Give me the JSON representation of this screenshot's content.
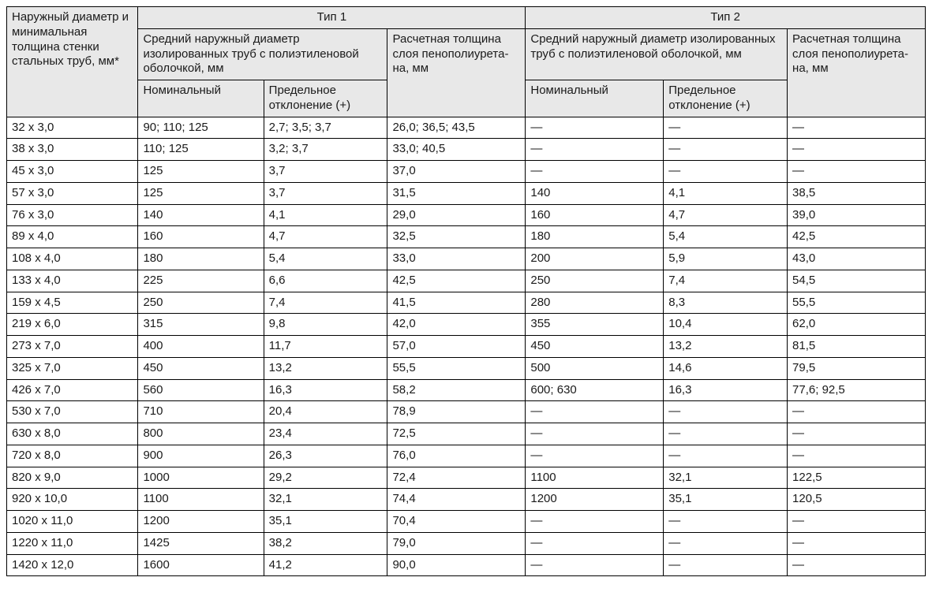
{
  "table": {
    "type": "table",
    "background_color": "#ffffff",
    "header_background": "#e8e8e8",
    "border_color": "#000000",
    "text_color": "#1a1a1a",
    "font_family": "Arial",
    "font_size_pt": 11,
    "columns_width_pct": [
      13.8,
      13.2,
      13.0,
      14.5,
      14.5,
      13.0,
      14.5
    ],
    "headers": {
      "col0": "Наружный диаметр и минимальная толщина стенки стальных труб, мм*",
      "type1": "Тип 1",
      "type2": "Тип 2",
      "avg_diam": "Средний наружный диаметр изолированных труб с полиэтиленовой оболочкой, мм",
      "thickness": "Расчетная толщина слоя пенополиурета­на, мм",
      "nominal": "Номинальный",
      "deviation": "Предельное отклонение (+)"
    },
    "rows": [
      [
        "32 x 3,0",
        "90; 110; 125",
        "2,7; 3,5; 3,7",
        "26,0; 36,5; 43,5",
        "—",
        "—",
        "—"
      ],
      [
        "38 x 3,0",
        "110; 125",
        "3,2; 3,7",
        "33,0; 40,5",
        "—",
        "—",
        "—"
      ],
      [
        "45 x 3,0",
        "125",
        "3,7",
        "37,0",
        "—",
        "—",
        "—"
      ],
      [
        "57 x 3,0",
        "125",
        "3,7",
        "31,5",
        "140",
        "4,1",
        "38,5"
      ],
      [
        "76 x 3,0",
        "140",
        "4,1",
        "29,0",
        "160",
        "4,7",
        "39,0"
      ],
      [
        "89 x 4,0",
        "160",
        "4,7",
        "32,5",
        "180",
        "5,4",
        "42,5"
      ],
      [
        "108 x 4,0",
        "180",
        "5,4",
        "33,0",
        "200",
        "5,9",
        "43,0"
      ],
      [
        "133 x 4,0",
        "225",
        "6,6",
        "42,5",
        "250",
        "7,4",
        "54,5"
      ],
      [
        "159 x 4,5",
        "250",
        "7,4",
        "41,5",
        "280",
        "8,3",
        "55,5"
      ],
      [
        "219 x 6,0",
        "315",
        "9,8",
        "42,0",
        "355",
        "10,4",
        "62,0"
      ],
      [
        "273 x 7,0",
        "400",
        "11,7",
        "57,0",
        "450",
        "13,2",
        "81,5"
      ],
      [
        "325 x 7,0",
        "450",
        "13,2",
        "55,5",
        "500",
        "14,6",
        "79,5"
      ],
      [
        "426 x 7,0",
        "560",
        "16,3",
        "58,2",
        "600; 630",
        "16,3",
        "77,6; 92,5"
      ],
      [
        "530 x 7,0",
        "710",
        "20,4",
        "78,9",
        "—",
        "—",
        "—"
      ],
      [
        "630 x 8,0",
        "800",
        "23,4",
        "72,5",
        "—",
        "—",
        "—"
      ],
      [
        "720 x 8,0",
        "900",
        "26,3",
        "76,0",
        "—",
        "—",
        "—"
      ],
      [
        "820 x 9,0",
        "1000",
        "29,2",
        "72,4",
        "1100",
        "32,1",
        "122,5"
      ],
      [
        "920 x 10,0",
        "1100",
        "32,1",
        "74,4",
        "1200",
        "35,1",
        "120,5"
      ],
      [
        "1020 x 11,0",
        "1200",
        "35,1",
        "70,4",
        "—",
        "—",
        "—"
      ],
      [
        "1220 x 11,0",
        "1425",
        "38,2",
        "79,0",
        "—",
        "—",
        "—"
      ],
      [
        "1420 x 12,0",
        "1600",
        "41,2",
        "90,0",
        "—",
        "—",
        "—"
      ]
    ]
  }
}
